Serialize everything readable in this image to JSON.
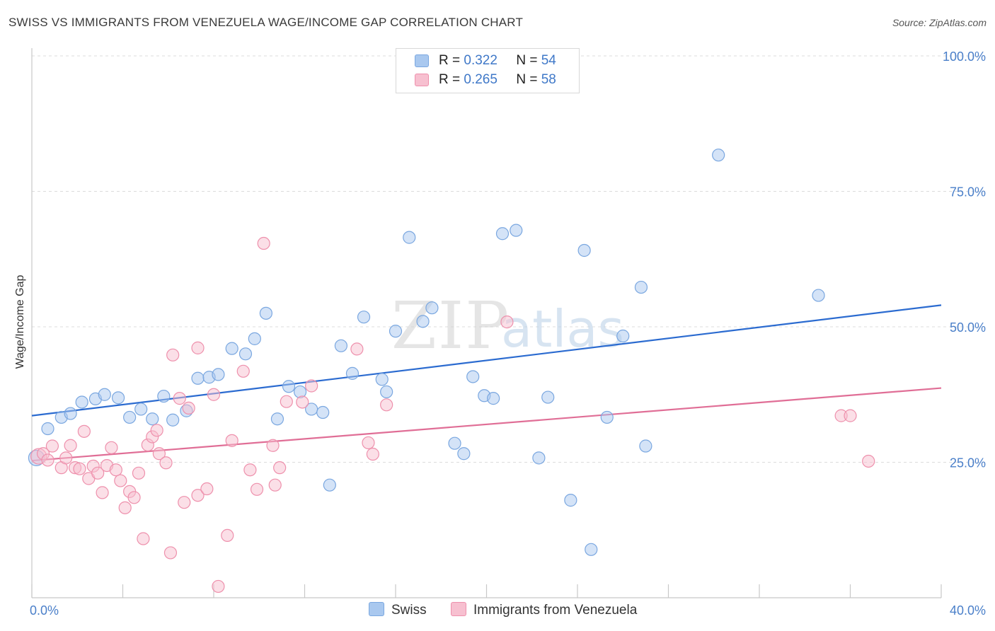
{
  "title": "SWISS VS IMMIGRANTS FROM VENEZUELA WAGE/INCOME GAP CORRELATION CHART",
  "source": "Source: ZipAtlas.com",
  "watermark": {
    "zip": "ZIP",
    "atlas": "atlas"
  },
  "legend_stats": [
    {
      "r_label": "R =",
      "r_value": "0.322",
      "n_label": "N =",
      "n_value": "54",
      "color": "#a9c8ef",
      "border": "#7aa7e0"
    },
    {
      "r_label": "R =",
      "r_value": "0.265",
      "n_label": "N =",
      "n_value": "58",
      "color": "#f7c0d0",
      "border": "#ee90ac"
    }
  ],
  "chart_data": {
    "type": "scatter",
    "title": "SWISS VS IMMIGRANTS FROM VENEZUELA WAGE/INCOME GAP CORRELATION CHART",
    "xlabel": "",
    "ylabel": "Wage/Income Gap",
    "xlim": [
      0,
      40
    ],
    "ylim": [
      0,
      100
    ],
    "x_tick_labels": [
      "0.0%",
      "40.0%"
    ],
    "y_tick_labels": [
      "25.0%",
      "50.0%",
      "75.0%",
      "100.0%"
    ],
    "y_ticks": [
      25,
      50,
      75,
      100
    ],
    "grid": true,
    "legend_position": "bottom",
    "series": [
      {
        "name": "Swiss",
        "color": "#a9c8ef",
        "stroke": "#7aa7e0",
        "line_color": "#2b6bd0",
        "trend": [
          [
            0,
            33.6
          ],
          [
            40,
            54.0
          ]
        ],
        "points": [
          [
            0.2,
            25.8
          ],
          [
            0.7,
            31.2
          ],
          [
            1.3,
            33.3
          ],
          [
            1.7,
            34.0
          ],
          [
            2.2,
            36.1
          ],
          [
            2.8,
            36.7
          ],
          [
            3.2,
            37.5
          ],
          [
            3.8,
            36.9
          ],
          [
            4.3,
            33.3
          ],
          [
            4.8,
            34.8
          ],
          [
            5.3,
            33.0
          ],
          [
            5.8,
            37.2
          ],
          [
            6.2,
            32.8
          ],
          [
            6.8,
            34.5
          ],
          [
            7.3,
            40.5
          ],
          [
            7.8,
            40.7
          ],
          [
            8.2,
            41.2
          ],
          [
            8.8,
            46.0
          ],
          [
            9.4,
            45.0
          ],
          [
            9.8,
            47.8
          ],
          [
            10.3,
            52.5
          ],
          [
            10.8,
            33.0
          ],
          [
            11.3,
            39.0
          ],
          [
            11.8,
            38.0
          ],
          [
            12.3,
            34.8
          ],
          [
            12.8,
            34.2
          ],
          [
            13.1,
            20.8
          ],
          [
            13.6,
            46.5
          ],
          [
            14.1,
            41.4
          ],
          [
            14.6,
            51.8
          ],
          [
            15.4,
            40.3
          ],
          [
            15.6,
            38.0
          ],
          [
            16.0,
            49.2
          ],
          [
            16.6,
            66.5
          ],
          [
            17.2,
            51.0
          ],
          [
            17.6,
            53.5
          ],
          [
            18.6,
            28.5
          ],
          [
            19.0,
            26.6
          ],
          [
            19.4,
            40.8
          ],
          [
            19.9,
            37.3
          ],
          [
            20.3,
            36.8
          ],
          [
            20.7,
            67.2
          ],
          [
            21.3,
            67.8
          ],
          [
            22.3,
            25.8
          ],
          [
            22.7,
            37.0
          ],
          [
            23.7,
            18.0
          ],
          [
            24.3,
            64.1
          ],
          [
            24.6,
            8.9
          ],
          [
            25.3,
            33.3
          ],
          [
            26.0,
            48.3
          ],
          [
            26.8,
            57.3
          ],
          [
            27.0,
            28.0
          ],
          [
            30.2,
            81.7
          ],
          [
            34.6,
            55.8
          ]
        ]
      },
      {
        "name": "Immigrants from Venezuela",
        "color": "#f7c0d0",
        "stroke": "#ee90ac",
        "line_color": "#e06e96",
        "trend": [
          [
            0,
            25.3
          ],
          [
            40,
            38.7
          ]
        ],
        "points": [
          [
            0.3,
            26.1
          ],
          [
            0.5,
            26.6
          ],
          [
            0.7,
            25.4
          ],
          [
            0.9,
            28.0
          ],
          [
            1.3,
            24.0
          ],
          [
            1.5,
            25.8
          ],
          [
            1.7,
            28.1
          ],
          [
            1.9,
            24.0
          ],
          [
            2.1,
            23.8
          ],
          [
            2.3,
            30.7
          ],
          [
            2.5,
            22.0
          ],
          [
            2.7,
            24.3
          ],
          [
            2.9,
            23.0
          ],
          [
            3.1,
            19.4
          ],
          [
            3.3,
            24.4
          ],
          [
            3.5,
            27.7
          ],
          [
            3.7,
            23.6
          ],
          [
            3.9,
            21.6
          ],
          [
            4.1,
            16.6
          ],
          [
            4.3,
            19.6
          ],
          [
            4.5,
            18.5
          ],
          [
            4.7,
            23.0
          ],
          [
            4.9,
            10.9
          ],
          [
            5.1,
            28.2
          ],
          [
            5.3,
            29.7
          ],
          [
            5.5,
            30.9
          ],
          [
            5.6,
            26.6
          ],
          [
            5.9,
            24.9
          ],
          [
            6.1,
            8.3
          ],
          [
            6.2,
            44.8
          ],
          [
            6.5,
            36.8
          ],
          [
            6.7,
            17.6
          ],
          [
            6.9,
            35.0
          ],
          [
            7.3,
            46.1
          ],
          [
            7.3,
            18.9
          ],
          [
            7.7,
            20.1
          ],
          [
            8.0,
            37.5
          ],
          [
            8.2,
            2.1
          ],
          [
            8.6,
            11.5
          ],
          [
            8.8,
            29.0
          ],
          [
            9.3,
            41.8
          ],
          [
            9.6,
            23.6
          ],
          [
            9.9,
            20.0
          ],
          [
            10.2,
            65.4
          ],
          [
            10.6,
            28.1
          ],
          [
            10.7,
            20.8
          ],
          [
            10.9,
            24.0
          ],
          [
            11.2,
            36.2
          ],
          [
            11.9,
            36.1
          ],
          [
            12.3,
            39.1
          ],
          [
            14.3,
            45.9
          ],
          [
            14.8,
            28.6
          ],
          [
            15.0,
            26.5
          ],
          [
            15.6,
            35.6
          ],
          [
            20.9,
            50.9
          ],
          [
            35.6,
            33.6
          ],
          [
            36.0,
            33.6
          ],
          [
            36.8,
            25.2
          ]
        ]
      }
    ]
  }
}
